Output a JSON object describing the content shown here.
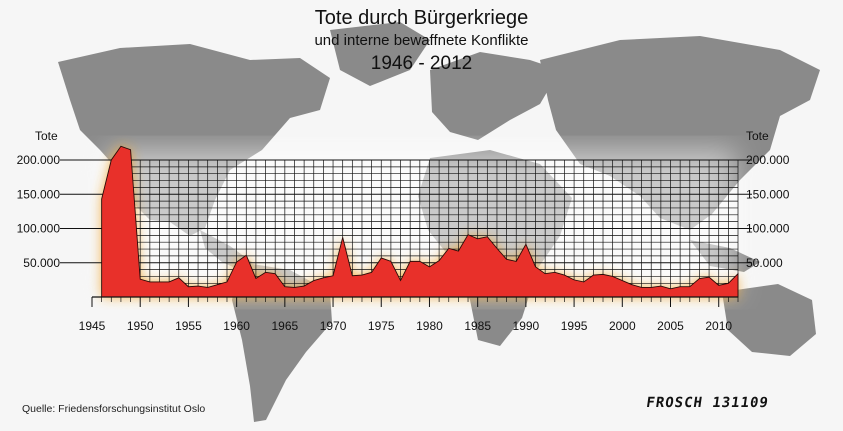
{
  "title": "Tote durch Bürgerkriege",
  "subtitle": "und interne bewaffnete Konflikte",
  "period": "1946 - 2012",
  "source": "Quelle: Friedensforschungsinstitut Oslo",
  "signature": "FROSCH 131109",
  "colors": {
    "area_fill": "#e8302a",
    "glow": "#f2a52c",
    "grid": "#111111",
    "map": "#8a8a8a",
    "background": "#f6f6f6"
  },
  "chart_data": {
    "type": "area",
    "title": "Tote durch Bürgerkriege",
    "ylabel_left": "Tote",
    "ylabel_right": "Tote",
    "ylim": [
      0,
      200000
    ],
    "y_ticks": [
      50000,
      100000,
      150000,
      200000
    ],
    "y_tick_labels": [
      "50.000",
      "100.000",
      "150.000",
      "200.000"
    ],
    "xlim": [
      1945,
      2012
    ],
    "x_ticks": [
      1945,
      1950,
      1955,
      1960,
      1965,
      1970,
      1975,
      1980,
      1985,
      1990,
      1995,
      2000,
      2005,
      2010
    ],
    "x_tick_labels": [
      "1945",
      "1950",
      "1955",
      "1960",
      "1965",
      "1970",
      "1975",
      "1980",
      "1985",
      "1990",
      "1995",
      "2000",
      "2005",
      "2010"
    ],
    "grid": true,
    "x": [
      1946,
      1947,
      1948,
      1949,
      1950,
      1951,
      1952,
      1953,
      1954,
      1955,
      1956,
      1957,
      1958,
      1959,
      1960,
      1961,
      1962,
      1963,
      1964,
      1965,
      1966,
      1967,
      1968,
      1969,
      1970,
      1971,
      1972,
      1973,
      1974,
      1975,
      1976,
      1977,
      1978,
      1979,
      1980,
      1981,
      1982,
      1983,
      1984,
      1985,
      1986,
      1987,
      1988,
      1989,
      1990,
      1991,
      1992,
      1993,
      1994,
      1995,
      1996,
      1997,
      1998,
      1999,
      2000,
      2001,
      2002,
      2003,
      2004,
      2005,
      2006,
      2007,
      2008,
      2009,
      2010,
      2011,
      2012
    ],
    "values": [
      143000,
      200000,
      220000,
      215000,
      26000,
      22000,
      22000,
      22000,
      28000,
      15000,
      16000,
      14000,
      18000,
      22000,
      51000,
      61000,
      27000,
      36000,
      34000,
      15000,
      14000,
      16000,
      24000,
      28000,
      31000,
      87000,
      31000,
      32000,
      36000,
      57000,
      52000,
      24000,
      52000,
      52000,
      44000,
      53000,
      71000,
      67000,
      91000,
      85000,
      88000,
      71000,
      55000,
      52000,
      77000,
      44000,
      34000,
      36000,
      32000,
      25000,
      22000,
      32000,
      33000,
      30000,
      24000,
      18000,
      14000,
      14000,
      16000,
      12000,
      15000,
      15000,
      27000,
      29000,
      17000,
      20000,
      34000
    ]
  }
}
